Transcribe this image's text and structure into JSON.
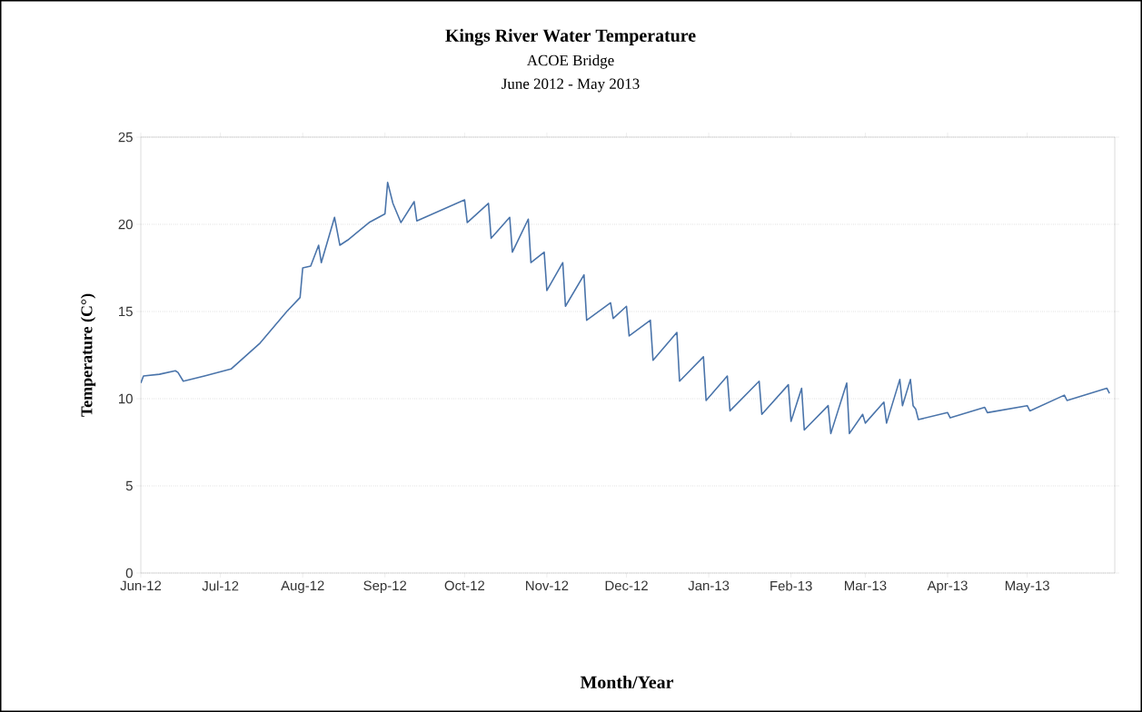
{
  "chart_data": {
    "type": "line",
    "title": "Kings River Water Temperature",
    "subtitle": "ACOE Bridge",
    "annotations": [
      "June 2012 - May 2013"
    ],
    "xlabel": "Month/Year",
    "ylabel": "Temperature (C°)",
    "xlim": [
      "2012-06-01",
      "2013-06-03"
    ],
    "xticks": [
      {
        "value": "2012-06-01",
        "label": "Jun-12"
      },
      {
        "value": "2012-07-01",
        "label": "Jul-12"
      },
      {
        "value": "2012-08-01",
        "label": "Aug-12"
      },
      {
        "value": "2012-09-01",
        "label": "Sep-12"
      },
      {
        "value": "2012-10-01",
        "label": "Oct-12"
      },
      {
        "value": "2012-11-01",
        "label": "Nov-12"
      },
      {
        "value": "2012-12-01",
        "label": "Dec-12"
      },
      {
        "value": "2013-01-01",
        "label": "Jan-13"
      },
      {
        "value": "2013-02-01",
        "label": "Feb-13"
      },
      {
        "value": "2013-03-01",
        "label": "Mar-13"
      },
      {
        "value": "2013-04-01",
        "label": "Apr-13"
      },
      {
        "value": "2013-05-01",
        "label": "May-13"
      }
    ],
    "ylim": [
      0,
      25
    ],
    "yticks": [
      0,
      5,
      10,
      15,
      20,
      25
    ],
    "grid": "y",
    "series": [
      {
        "color": "#4a74aa",
        "x": [
          "2012-06-01",
          "2012-06-02",
          "2012-06-08",
          "2012-06-14",
          "2012-06-15",
          "2012-06-17",
          "2012-06-25",
          "2012-07-05",
          "2012-07-16",
          "2012-07-26",
          "2012-07-31",
          "2012-08-01",
          "2012-08-04",
          "2012-08-07",
          "2012-08-08",
          "2012-08-13",
          "2012-08-15",
          "2012-08-18",
          "2012-08-26",
          "2012-09-01",
          "2012-09-02",
          "2012-09-04",
          "2012-09-07",
          "2012-09-12",
          "2012-09-13",
          "2012-10-01",
          "2012-10-02",
          "2012-10-10",
          "2012-10-11",
          "2012-10-18",
          "2012-10-19",
          "2012-10-25",
          "2012-10-26",
          "2012-10-31",
          "2012-11-01",
          "2012-11-07",
          "2012-11-08",
          "2012-11-15",
          "2012-11-16",
          "2012-11-25",
          "2012-11-26",
          "2012-12-01",
          "2012-12-02",
          "2012-12-10",
          "2012-12-11",
          "2012-12-20",
          "2012-12-21",
          "2012-12-30",
          "2012-12-31",
          "2013-01-08",
          "2013-01-09",
          "2013-01-20",
          "2013-01-21",
          "2013-01-31",
          "2013-02-01",
          "2013-02-05",
          "2013-02-06",
          "2013-02-15",
          "2013-02-16",
          "2013-02-22",
          "2013-02-23",
          "2013-02-28",
          "2013-03-01",
          "2013-03-08",
          "2013-03-09",
          "2013-03-14",
          "2013-03-15",
          "2013-03-18",
          "2013-03-19",
          "2013-03-20",
          "2013-03-21",
          "2013-04-01",
          "2013-04-02",
          "2013-04-15",
          "2013-04-16",
          "2013-05-01",
          "2013-05-02",
          "2013-05-15",
          "2013-05-16",
          "2013-05-31",
          "2013-06-01"
        ],
        "values": [
          10.9,
          11.3,
          11.4,
          11.6,
          11.5,
          11.0,
          11.3,
          11.7,
          13.2,
          15.0,
          15.8,
          17.5,
          17.6,
          18.8,
          17.8,
          20.4,
          18.8,
          19.1,
          20.1,
          20.6,
          22.4,
          21.2,
          20.1,
          21.3,
          20.2,
          21.4,
          20.1,
          21.2,
          19.2,
          20.4,
          18.4,
          20.3,
          17.8,
          18.4,
          16.2,
          17.8,
          15.3,
          17.1,
          14.5,
          15.5,
          14.6,
          15.3,
          13.6,
          14.5,
          12.2,
          13.8,
          11.0,
          12.4,
          9.9,
          11.3,
          9.3,
          11.0,
          9.1,
          10.8,
          8.7,
          10.6,
          8.2,
          9.6,
          8.0,
          10.9,
          8.0,
          9.1,
          8.6,
          9.8,
          8.6,
          11.1,
          9.6,
          11.1,
          9.6,
          9.4,
          8.8,
          9.2,
          8.9,
          9.5,
          9.2,
          9.6,
          9.3,
          10.2,
          9.9,
          10.6,
          10.3
        ]
      }
    ]
  }
}
